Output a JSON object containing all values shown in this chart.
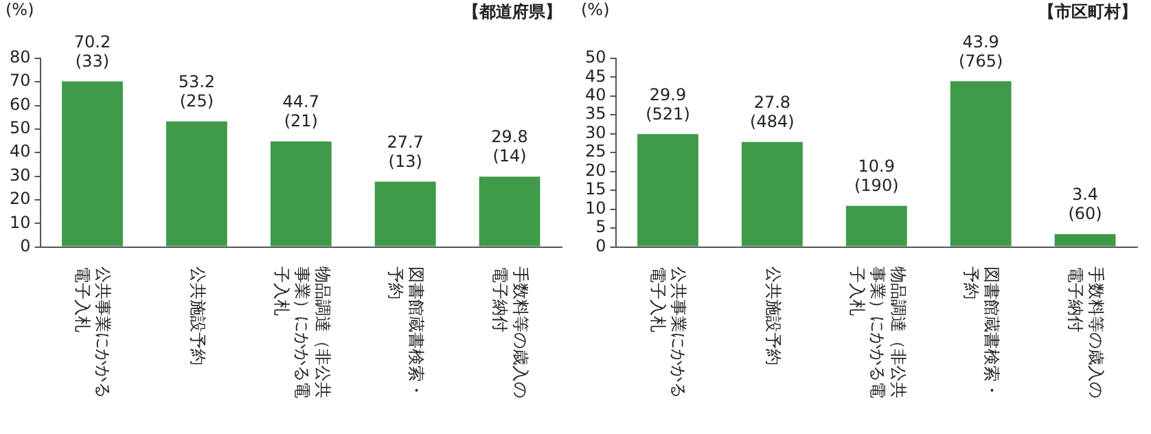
{
  "chart_data": [
    {
      "type": "bar",
      "title": "【都道府県】",
      "ylabel": "(%)",
      "categories": [
        "公共事業にかかる電子入札",
        "公共施設予約",
        "物品調達（非公共事業）にかかる電子入札",
        "図書館蔵書検索・予約",
        "手数料等の歳入の電子納付"
      ],
      "values": [
        70.2,
        53.2,
        44.7,
        27.7,
        29.8
      ],
      "value_labels": [
        "70.2\n(33)",
        "53.2\n(25)",
        "44.7\n(21)",
        "27.7\n(13)",
        "29.8\n(14)"
      ],
      "color": "#3f9a4a",
      "ylim": [
        0,
        80
      ],
      "yticks": [
        0,
        10,
        20,
        30,
        40,
        50,
        60,
        70,
        80
      ],
      "grid": false,
      "legend": false
    },
    {
      "type": "bar",
      "title": "【市区町村】",
      "ylabel": "(%)",
      "categories": [
        "公共事業にかかる電子入札",
        "公共施設予約",
        "物品調達（非公共事業）にかかる電子入札",
        "図書館蔵書検索・予約",
        "手数料等の歳入の電子納付"
      ],
      "values": [
        29.9,
        27.8,
        10.9,
        43.9,
        3.4
      ],
      "value_labels": [
        "29.9\n(521)",
        "27.8\n(484)",
        "10.9\n(190)",
        "43.9\n(765)",
        "3.4\n(60)"
      ],
      "color": "#3f9a4a",
      "ylim": [
        0,
        50
      ],
      "yticks": [
        0,
        5,
        10,
        15,
        20,
        25,
        30,
        35,
        40,
        45,
        50
      ],
      "grid": false,
      "legend": false
    }
  ]
}
